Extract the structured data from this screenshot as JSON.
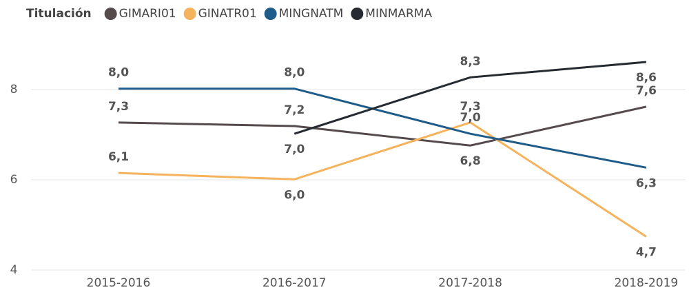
{
  "chart_data": {
    "type": "line",
    "legend_title": "Titulación",
    "categories": [
      "2015-2016",
      "2016-2017",
      "2017-2018",
      "2018-2019"
    ],
    "series": [
      {
        "name": "GIMARI01",
        "color": "#554a4c",
        "values": [
          7.27,
          7.19,
          6.76,
          7.62
        ],
        "value_labels": [
          "7,3",
          "7,2",
          "6,8",
          "7,6"
        ]
      },
      {
        "name": "GINATR01",
        "color": "#f6b35e",
        "values": [
          6.15,
          6.01,
          7.27,
          4.74
        ],
        "value_labels": [
          "6,1",
          "6,0",
          "7,3",
          "4,7"
        ]
      },
      {
        "name": "MINGNATM",
        "color": "#1f5c8a",
        "values": [
          8.02,
          8.02,
          7.02,
          6.27
        ],
        "value_labels": [
          "8,0",
          "8,0",
          "7,0",
          "6,3"
        ]
      },
      {
        "name": "MINMARMA",
        "color": "#262a31",
        "values": [
          null,
          7.02,
          8.27,
          8.61
        ],
        "value_labels": [
          null,
          "7,0",
          "8,3",
          "8,6"
        ]
      }
    ],
    "ylim": [
      4,
      9
    ],
    "yticks": [
      4,
      6,
      8
    ],
    "grid": true,
    "legend": "top-left"
  }
}
